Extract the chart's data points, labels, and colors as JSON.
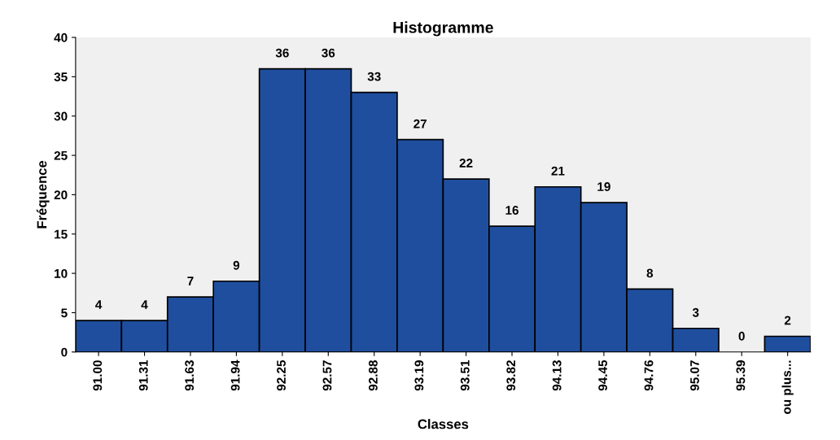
{
  "chart_data": {
    "type": "bar",
    "title": "Histogramme",
    "xlabel": "Classes",
    "ylabel": "Fréquence",
    "categories": [
      "91.00",
      "91.31",
      "91.63",
      "91.94",
      "92.25",
      "92.57",
      "92.88",
      "93.19",
      "93.51",
      "93.82",
      "94.13",
      "94.45",
      "94.76",
      "95.07",
      "95.39",
      "ou plus..."
    ],
    "values": [
      4,
      4,
      7,
      9,
      36,
      36,
      33,
      27,
      22,
      16,
      21,
      19,
      8,
      3,
      0,
      2
    ],
    "color": "#1f4e9e",
    "ylim": [
      0,
      40
    ],
    "yticks": [
      0,
      5,
      10,
      15,
      20,
      25,
      30,
      35,
      40
    ],
    "data_labels": true,
    "grid": false,
    "legend": false
  }
}
